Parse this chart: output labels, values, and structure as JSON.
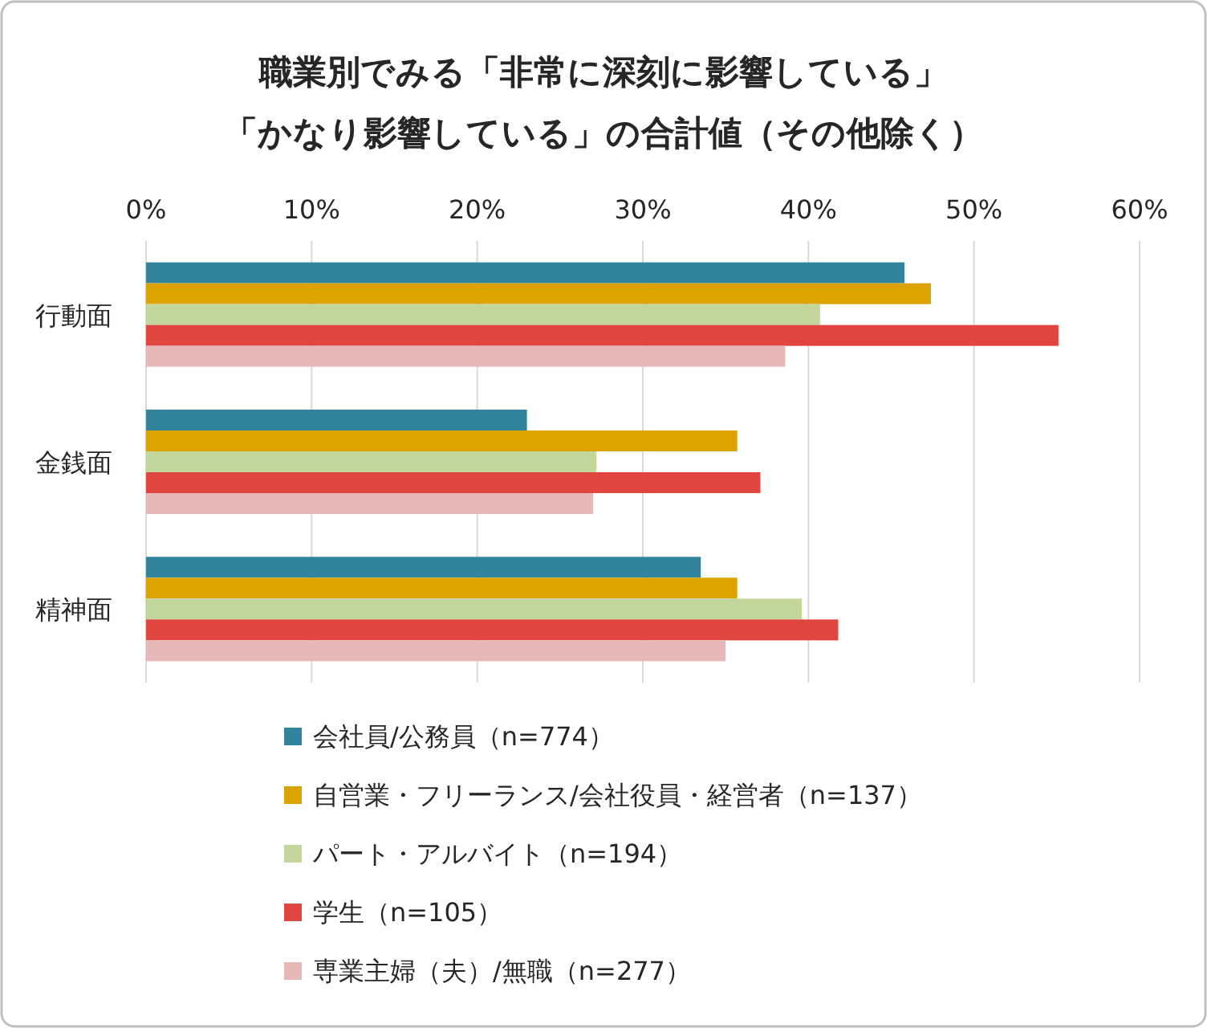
{
  "chart_data": {
    "type": "bar",
    "orientation": "horizontal",
    "title": "職業別でみる「非常に深刻に影響している」",
    "subtitle": "「かなり影響している」の合計値（その他除く）",
    "categories": [
      "行動面",
      "金銭面",
      "精神面"
    ],
    "series": [
      {
        "name": "会社員/公務員（n=774）",
        "color": "#31849b",
        "values": [
          45.8,
          23.0,
          33.5
        ]
      },
      {
        "name": "自営業・フリーランス/会社役員・経営者（n=137）",
        "color": "#dba200",
        "values": [
          47.4,
          35.7,
          35.7
        ]
      },
      {
        "name": "パート・アルバイト（n=194）",
        "color": "#c3d69b",
        "values": [
          40.7,
          27.2,
          39.6
        ]
      },
      {
        "name": "学生（n=105）",
        "color": "#e0463f",
        "values": [
          55.1,
          37.1,
          41.8
        ]
      },
      {
        "name": "専業主婦（夫）/無職（n=277）",
        "color": "#e6b9b8",
        "values": [
          38.6,
          27.0,
          35.0
        ]
      }
    ],
    "xlim": [
      0,
      60
    ],
    "xticks": [
      {
        "value": 0,
        "label": "0%"
      },
      {
        "value": 10,
        "label": "10%"
      },
      {
        "value": 20,
        "label": "20%"
      },
      {
        "value": 30,
        "label": "30%"
      },
      {
        "value": 40,
        "label": "40%"
      },
      {
        "value": 50,
        "label": "50%"
      },
      {
        "value": 60,
        "label": "60%"
      }
    ],
    "grid": "x",
    "legend": "bottom"
  }
}
